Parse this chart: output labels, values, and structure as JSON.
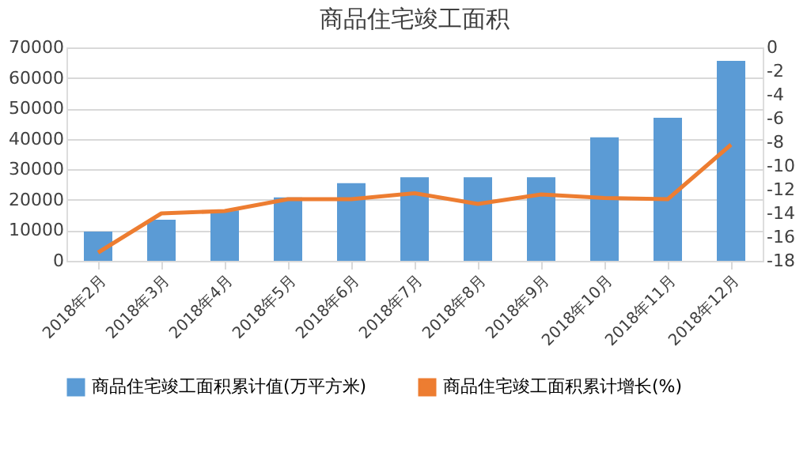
{
  "chart_data": {
    "type": "bar",
    "title": "商品住宅竣工面积",
    "categories": [
      "2018年2月",
      "2018年3月",
      "2018年4月",
      "2018年5月",
      "2018年6月",
      "2018年7月",
      "2018年8月",
      "2018年9月",
      "2018年10月",
      "2018年11月",
      "2018年12月"
    ],
    "series": [
      {
        "name": "商品住宅竣工面积累计值(万平方米)",
        "color": "#5b9bd5",
        "values": [
          9600,
          13500,
          16500,
          20800,
          25500,
          27400,
          27400,
          27400,
          40500,
          46900,
          65600
        ]
      },
      {
        "name": "商品住宅竣工面积累计增长(%)",
        "type": "line",
        "axis": "y2",
        "color": "#ed7d31",
        "values": [
          -17.3,
          -14.0,
          -13.8,
          -12.8,
          -12.8,
          -12.3,
          -13.2,
          -12.4,
          -12.7,
          -12.8,
          -8.2
        ]
      }
    ],
    "ylim": [
      0,
      70000
    ],
    "yticks": [
      0,
      10000,
      20000,
      30000,
      40000,
      50000,
      60000,
      70000
    ],
    "y2lim": [
      -18,
      0
    ],
    "y2ticks": [
      0,
      -2,
      -4,
      -6,
      -8,
      -10,
      -12,
      -14,
      -16,
      -18
    ],
    "grid": "y",
    "legend": "bottom",
    "marker": "none"
  }
}
